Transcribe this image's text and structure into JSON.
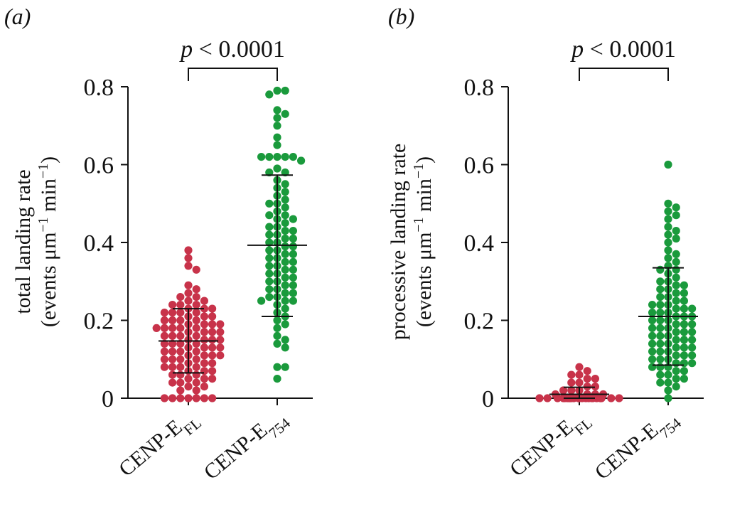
{
  "chart_data": [
    {
      "type": "scatter",
      "panel_label": "(a)",
      "ylabel_line1": "total landing rate",
      "ylabel_line2_base": "(events μm",
      "ylabel_line2_sup1": "−1",
      "ylabel_line2_mid": " min",
      "ylabel_line2_sup2": "−1",
      "ylabel_line2_end": ")",
      "ylim": [
        0,
        0.8
      ],
      "yticks": [
        "0",
        "0.2",
        "0.4",
        "0.6",
        "0.8"
      ],
      "ytick_values": [
        0,
        0.2,
        0.4,
        0.6,
        0.8
      ],
      "categories": [
        {
          "base": "CENP-E",
          "sub": "FL",
          "color": "#c8334a"
        },
        {
          "base": "CENP-E",
          "sub": "754",
          "color": "#1a9a3c"
        }
      ],
      "significance": "p < 0.0001",
      "series": [
        {
          "mean": 0.147,
          "sd_low": 0.065,
          "sd_high": 0.23,
          "values": [
            0.38,
            0.36,
            0.34,
            0.33,
            0.29,
            0.28,
            0.27,
            0.26,
            0.26,
            0.25,
            0.25,
            0.24,
            0.24,
            0.24,
            0.23,
            0.23,
            0.23,
            0.22,
            0.22,
            0.22,
            0.22,
            0.21,
            0.21,
            0.21,
            0.2,
            0.2,
            0.2,
            0.2,
            0.19,
            0.19,
            0.19,
            0.19,
            0.18,
            0.18,
            0.18,
            0.18,
            0.18,
            0.17,
            0.17,
            0.17,
            0.17,
            0.16,
            0.16,
            0.16,
            0.16,
            0.15,
            0.15,
            0.15,
            0.15,
            0.14,
            0.14,
            0.14,
            0.14,
            0.13,
            0.13,
            0.13,
            0.13,
            0.12,
            0.12,
            0.12,
            0.12,
            0.11,
            0.11,
            0.11,
            0.11,
            0.1,
            0.1,
            0.1,
            0.1,
            0.09,
            0.09,
            0.09,
            0.08,
            0.08,
            0.08,
            0.08,
            0.07,
            0.07,
            0.07,
            0.06,
            0.06,
            0.06,
            0.05,
            0.05,
            0.05,
            0.04,
            0.04,
            0.04,
            0.03,
            0.03,
            0.02,
            0.02,
            0.0,
            0.0,
            0.0,
            0.0,
            0.0,
            0.0,
            0.0
          ]
        },
        {
          "mean": 0.393,
          "sd_low": 0.21,
          "sd_high": 0.573,
          "values": [
            0.79,
            0.79,
            0.78,
            0.74,
            0.73,
            0.72,
            0.7,
            0.67,
            0.65,
            0.62,
            0.62,
            0.62,
            0.62,
            0.62,
            0.61,
            0.59,
            0.58,
            0.58,
            0.56,
            0.55,
            0.54,
            0.53,
            0.52,
            0.51,
            0.5,
            0.5,
            0.49,
            0.48,
            0.47,
            0.47,
            0.46,
            0.46,
            0.45,
            0.44,
            0.44,
            0.43,
            0.43,
            0.42,
            0.42,
            0.41,
            0.41,
            0.4,
            0.4,
            0.39,
            0.39,
            0.38,
            0.38,
            0.37,
            0.37,
            0.36,
            0.36,
            0.35,
            0.35,
            0.34,
            0.34,
            0.33,
            0.33,
            0.32,
            0.32,
            0.31,
            0.31,
            0.3,
            0.3,
            0.29,
            0.29,
            0.28,
            0.28,
            0.27,
            0.27,
            0.26,
            0.26,
            0.25,
            0.25,
            0.25,
            0.24,
            0.23,
            0.22,
            0.21,
            0.2,
            0.19,
            0.18,
            0.16,
            0.15,
            0.14,
            0.13,
            0.08,
            0.08,
            0.05
          ]
        }
      ]
    },
    {
      "type": "scatter",
      "panel_label": "(b)",
      "ylabel_line1": "processive landing rate",
      "ylabel_line2_base": "(events μm",
      "ylabel_line2_sup1": "−1",
      "ylabel_line2_mid": " min",
      "ylabel_line2_sup2": "−1",
      "ylabel_line2_end": ")",
      "ylim": [
        0,
        0.8
      ],
      "yticks": [
        "0",
        "0.2",
        "0.4",
        "0.6",
        "0.8"
      ],
      "ytick_values": [
        0,
        0.2,
        0.4,
        0.6,
        0.8
      ],
      "categories": [
        {
          "base": "CENP-E",
          "sub": "FL",
          "color": "#c8334a"
        },
        {
          "base": "CENP-E",
          "sub": "754",
          "color": "#1a9a3c"
        }
      ],
      "significance": "p < 0.0001",
      "series": [
        {
          "mean": 0.01,
          "sd_low": 0.0,
          "sd_high": 0.028,
          "values": [
            0.08,
            0.07,
            0.06,
            0.06,
            0.05,
            0.05,
            0.04,
            0.04,
            0.03,
            0.03,
            0.02,
            0.02,
            0.02,
            0.01,
            0.01,
            0.01,
            0.01,
            0.0,
            0.0,
            0.0,
            0.0,
            0.0,
            0.0,
            0.0,
            0.0,
            0.0,
            0.0,
            0.0,
            0.0,
            0.0,
            0.0,
            0.0,
            0.0,
            0.0,
            0.0,
            0.0,
            0.0,
            0.0,
            0.0,
            0.0,
            0.0,
            0.0,
            0.0
          ]
        },
        {
          "mean": 0.21,
          "sd_low": 0.085,
          "sd_high": 0.335,
          "values": [
            0.6,
            0.5,
            0.49,
            0.48,
            0.47,
            0.46,
            0.44,
            0.43,
            0.42,
            0.41,
            0.4,
            0.38,
            0.37,
            0.36,
            0.35,
            0.34,
            0.33,
            0.33,
            0.32,
            0.31,
            0.3,
            0.3,
            0.29,
            0.29,
            0.28,
            0.28,
            0.27,
            0.27,
            0.26,
            0.26,
            0.25,
            0.25,
            0.24,
            0.24,
            0.24,
            0.23,
            0.23,
            0.23,
            0.22,
            0.22,
            0.22,
            0.21,
            0.21,
            0.21,
            0.2,
            0.2,
            0.2,
            0.19,
            0.19,
            0.19,
            0.18,
            0.18,
            0.18,
            0.17,
            0.17,
            0.17,
            0.16,
            0.16,
            0.16,
            0.15,
            0.15,
            0.15,
            0.14,
            0.14,
            0.14,
            0.13,
            0.13,
            0.13,
            0.12,
            0.12,
            0.12,
            0.11,
            0.11,
            0.11,
            0.1,
            0.1,
            0.1,
            0.09,
            0.09,
            0.09,
            0.08,
            0.08,
            0.08,
            0.07,
            0.07,
            0.06,
            0.06,
            0.05,
            0.05,
            0.04,
            0.04,
            0.03,
            0.02,
            0.0
          ]
        }
      ]
    }
  ]
}
